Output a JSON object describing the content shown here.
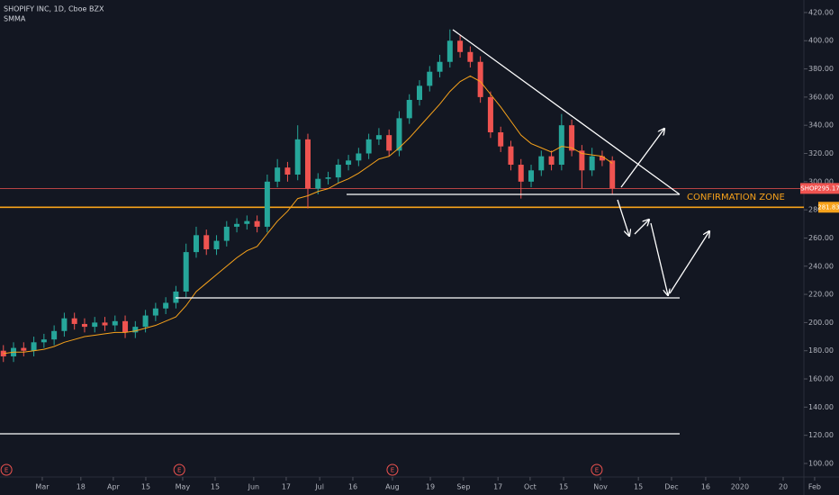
{
  "chart_data": {
    "type": "candlestick",
    "title": "SHOPIFY INC, 1D, Cboe BZX",
    "up_color": "#26a69a",
    "down_color": "#ef5350",
    "x": [
      1,
      4,
      7,
      10,
      13,
      16,
      19,
      22,
      25,
      28,
      31,
      34,
      37,
      40,
      43,
      46,
      49,
      52,
      55,
      58,
      61,
      64,
      67,
      70,
      73,
      76,
      79,
      82,
      85,
      88,
      91,
      94,
      97,
      100,
      103,
      106,
      109,
      112,
      115,
      118,
      121,
      124,
      127,
      130,
      133,
      136,
      139,
      142,
      145,
      148,
      151,
      154,
      157,
      160,
      163,
      166,
      169,
      172,
      175,
      178,
      181
    ],
    "open": [
      180,
      176,
      182,
      180,
      186,
      188,
      194,
      203,
      199,
      197,
      200,
      198,
      201,
      193,
      197,
      205,
      210,
      214,
      222,
      250,
      262,
      252,
      258,
      268,
      270,
      272,
      268,
      300,
      310,
      305,
      330,
      295,
      302,
      303,
      312,
      315,
      320,
      330,
      333,
      322,
      345,
      358,
      368,
      378,
      385,
      400,
      392,
      385,
      360,
      335,
      325,
      312,
      300,
      308,
      318,
      312,
      340,
      322,
      308,
      318,
      315
    ],
    "high": [
      184,
      186,
      186,
      190,
      192,
      198,
      207,
      207,
      203,
      204,
      204,
      205,
      205,
      201,
      209,
      214,
      218,
      226,
      256,
      268,
      266,
      262,
      272,
      274,
      276,
      276,
      305,
      316,
      314,
      340,
      334,
      306,
      307,
      316,
      319,
      324,
      334,
      338,
      337,
      350,
      362,
      372,
      382,
      390,
      408,
      404,
      396,
      389,
      364,
      339,
      329,
      316,
      312,
      322,
      322,
      348,
      344,
      326,
      324,
      322,
      318
    ],
    "low": [
      172,
      172,
      176,
      176,
      182,
      184,
      190,
      195,
      193,
      193,
      194,
      194,
      189,
      189,
      193,
      201,
      206,
      210,
      218,
      246,
      248,
      248,
      254,
      264,
      266,
      264,
      264,
      296,
      300,
      301,
      281,
      291,
      298,
      299,
      308,
      311,
      316,
      326,
      318,
      318,
      341,
      354,
      364,
      374,
      381,
      388,
      381,
      356,
      331,
      321,
      308,
      288,
      296,
      304,
      308,
      308,
      318,
      295,
      304,
      311,
      291
    ],
    "close": [
      176,
      182,
      180,
      186,
      188,
      194,
      203,
      199,
      197,
      200,
      198,
      201,
      193,
      197,
      205,
      210,
      214,
      222,
      250,
      262,
      252,
      258,
      268,
      270,
      272,
      268,
      300,
      310,
      305,
      330,
      295,
      302,
      303,
      312,
      315,
      320,
      330,
      333,
      322,
      345,
      358,
      368,
      378,
      385,
      400,
      392,
      385,
      360,
      335,
      325,
      312,
      300,
      308,
      318,
      312,
      340,
      322,
      308,
      318,
      315,
      295
    ],
    "smma": {
      "name": "SMMA",
      "color": "#f7a21b",
      "values": [
        178,
        179,
        179,
        180,
        181,
        183,
        186,
        188,
        190,
        191,
        192,
        193,
        193,
        194,
        196,
        198,
        201,
        204,
        212,
        222,
        228,
        234,
        240,
        246,
        251,
        254,
        263,
        272,
        279,
        288,
        290,
        293,
        295,
        299,
        302,
        306,
        311,
        316,
        318,
        324,
        331,
        339,
        347,
        355,
        364,
        371,
        375,
        371,
        362,
        353,
        343,
        333,
        327,
        324,
        321,
        325,
        324,
        320,
        319,
        318,
        313
      ]
    },
    "last_price": {
      "symbol": "SHOP",
      "value": 295.17,
      "color": "#ef5350"
    },
    "level": {
      "value": 281.83,
      "color": "#f7a21b"
    },
    "annotation": "CONFIRMATION ZONE",
    "earnings": {
      "label": "E",
      "x": [
        1.9,
        53,
        116,
        176.4
      ]
    },
    "xlim": [
      0,
      248
    ],
    "ylim": [
      90.4,
      428.9
    ],
    "yticks": [
      {
        "value": 420,
        "label": "420.00"
      },
      {
        "value": 400,
        "label": "400.00"
      },
      {
        "value": 380,
        "label": "380.00"
      },
      {
        "value": 360,
        "label": "360.00"
      },
      {
        "value": 340,
        "label": "340.00"
      },
      {
        "value": 320,
        "label": "320.00"
      },
      {
        "value": 300,
        "label": "300.00"
      },
      {
        "value": 280,
        "label": "280.00"
      },
      {
        "value": 260,
        "label": "260.00"
      },
      {
        "value": 240,
        "label": "240.00"
      },
      {
        "value": 220,
        "label": "220.00"
      },
      {
        "value": 200,
        "label": "200.00"
      },
      {
        "value": 180,
        "label": "180.00"
      },
      {
        "value": 160,
        "label": "160.00"
      },
      {
        "value": 140,
        "label": "140.00"
      },
      {
        "value": 120,
        "label": "120.00"
      },
      {
        "value": 100,
        "label": "100.00"
      }
    ],
    "xticks": [
      {
        "value": 12.5,
        "label": "Mar"
      },
      {
        "value": 23.9,
        "label": "18"
      },
      {
        "value": 33.5,
        "label": "Apr"
      },
      {
        "value": 43.1,
        "label": "15"
      },
      {
        "value": 54.0,
        "label": "May"
      },
      {
        "value": 63.6,
        "label": "15"
      },
      {
        "value": 75.0,
        "label": "Jun"
      },
      {
        "value": 84.6,
        "label": "17"
      },
      {
        "value": 94.5,
        "label": "Jul"
      },
      {
        "value": 104.3,
        "label": "16"
      },
      {
        "value": 116.0,
        "label": "Aug"
      },
      {
        "value": 127.2,
        "label": "19"
      },
      {
        "value": 137.0,
        "label": "Sep"
      },
      {
        "value": 147.2,
        "label": "17"
      },
      {
        "value": 156.7,
        "label": "Oct"
      },
      {
        "value": 166.6,
        "label": "15"
      },
      {
        "value": 177.5,
        "label": "Nov"
      },
      {
        "value": 188.7,
        "label": "15"
      },
      {
        "value": 198.5,
        "label": "Dec"
      },
      {
        "value": 208.6,
        "label": "16"
      },
      {
        "value": 218.7,
        "label": "2020"
      },
      {
        "value": 231.5,
        "label": "20"
      },
      {
        "value": 240.8,
        "label": "Feb"
      }
    ]
  }
}
